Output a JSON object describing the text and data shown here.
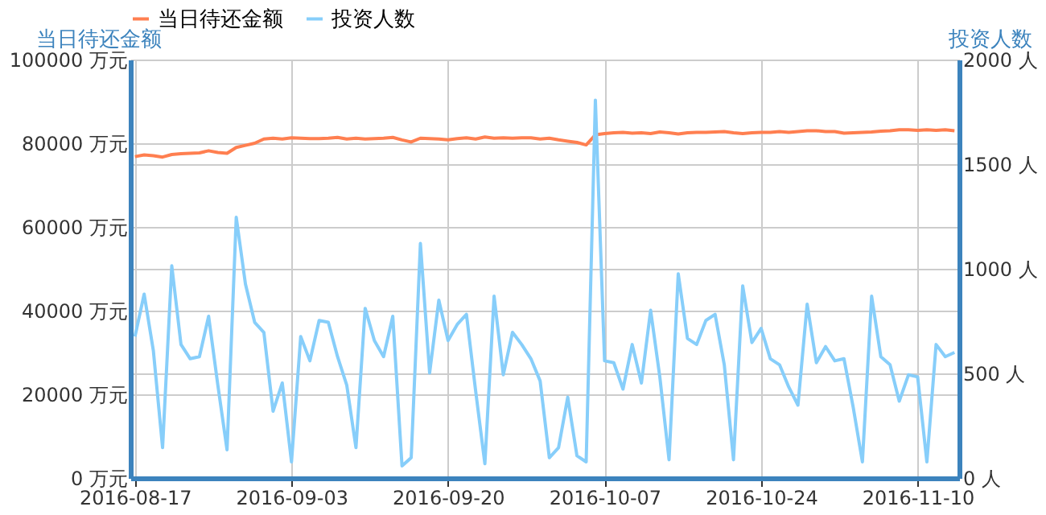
{
  "chart_data": {
    "type": "line",
    "x": [
      "2016-08-17",
      "2016-08-18",
      "2016-08-19",
      "2016-08-20",
      "2016-08-21",
      "2016-08-22",
      "2016-08-23",
      "2016-08-24",
      "2016-08-25",
      "2016-08-26",
      "2016-08-27",
      "2016-08-28",
      "2016-08-29",
      "2016-08-30",
      "2016-08-31",
      "2016-09-01",
      "2016-09-02",
      "2016-09-03",
      "2016-09-04",
      "2016-09-05",
      "2016-09-06",
      "2016-09-07",
      "2016-09-08",
      "2016-09-09",
      "2016-09-10",
      "2016-09-11",
      "2016-09-12",
      "2016-09-13",
      "2016-09-14",
      "2016-09-15",
      "2016-09-16",
      "2016-09-17",
      "2016-09-18",
      "2016-09-19",
      "2016-09-20",
      "2016-09-21",
      "2016-09-22",
      "2016-09-23",
      "2016-09-24",
      "2016-09-25",
      "2016-09-26",
      "2016-09-27",
      "2016-09-28",
      "2016-09-29",
      "2016-09-30",
      "2016-10-01",
      "2016-10-02",
      "2016-10-03",
      "2016-10-04",
      "2016-10-05",
      "2016-10-06",
      "2016-10-07",
      "2016-10-08",
      "2016-10-09",
      "2016-10-10",
      "2016-10-11",
      "2016-10-12",
      "2016-10-13",
      "2016-10-14",
      "2016-10-15",
      "2016-10-16",
      "2016-10-17",
      "2016-10-18",
      "2016-10-19",
      "2016-10-20",
      "2016-10-21",
      "2016-10-22",
      "2016-10-23",
      "2016-10-24",
      "2016-10-25",
      "2016-10-26",
      "2016-10-27",
      "2016-10-28",
      "2016-10-29",
      "2016-10-30",
      "2016-10-31",
      "2016-11-01",
      "2016-11-02",
      "2016-11-03",
      "2016-11-04",
      "2016-11-05",
      "2016-11-06",
      "2016-11-07",
      "2016-11-08",
      "2016-11-09",
      "2016-11-10",
      "2016-11-11",
      "2016-11-12",
      "2016-11-13",
      "2016-11-14"
    ],
    "series": [
      {
        "name": "当日待还金额",
        "color": "#ff7f50",
        "values": [
          76800,
          77200,
          77000,
          76700,
          77300,
          77500,
          77600,
          77700,
          78200,
          77800,
          77600,
          79000,
          79500,
          80000,
          81000,
          81200,
          81000,
          81300,
          81200,
          81100,
          81100,
          81200,
          81400,
          81000,
          81200,
          81000,
          81100,
          81200,
          81400,
          80800,
          80300,
          81200,
          81100,
          81000,
          80800,
          81100,
          81300,
          81000,
          81500,
          81200,
          81300,
          81200,
          81300,
          81300,
          81000,
          81200,
          80800,
          80500,
          80200,
          79600,
          82000,
          82300,
          82500,
          82600,
          82400,
          82500,
          82300,
          82700,
          82500,
          82200,
          82500,
          82600,
          82600,
          82700,
          82800,
          82500,
          82300,
          82500,
          82600,
          82600,
          82800,
          82600,
          82800,
          83000,
          83000,
          82800,
          82800,
          82400,
          82500,
          82600,
          82700,
          82900,
          83000,
          83200,
          83200,
          83100,
          83200,
          83100,
          83200,
          83000
        ]
      },
      {
        "name": "投资人数",
        "color": "#87cefa",
        "axis": "y2",
        "values": [
          676,
          879,
          608,
          145,
          1014,
          638,
          570,
          580,
          773,
          444,
          135,
          1246,
          927,
          744,
          696,
          319,
          454,
          77,
          676,
          560,
          753,
          744,
          580,
          444,
          145,
          811,
          657,
          580,
          773,
          58,
          97,
          1121,
          502,
          850,
          657,
          734,
          782,
          415,
          68,
          869,
          493,
          696,
          638,
          570,
          464,
          97,
          145,
          386,
          106,
          77,
          1806,
          560,
          551,
          425,
          638,
          454,
          802,
          483,
          87,
          976,
          667,
          638,
          753,
          782,
          541,
          87,
          918,
          647,
          715,
          570,
          541,
          435,
          348,
          831,
          551,
          628,
          560,
          570,
          338,
          77,
          869,
          580,
          541,
          367,
          493,
          483,
          77,
          638,
          580,
          600
        ]
      }
    ],
    "ylabel": "当日待还金额",
    "y2label": "投资人数",
    "xlim": [
      "2016-08-16T12:00",
      "2016-11-14T12:00"
    ],
    "xticks": [
      "2016-08-17",
      "2016-09-03",
      "2016-09-20",
      "2016-10-07",
      "2016-10-24",
      "2016-11-10"
    ],
    "ylim": [
      0,
      100000
    ],
    "yticks": [
      {
        "value": 0,
        "label": "0 万元"
      },
      {
        "value": 20000,
        "label": "20000 万元"
      },
      {
        "value": 40000,
        "label": "40000 万元"
      },
      {
        "value": 60000,
        "label": "60000 万元"
      },
      {
        "value": 80000,
        "label": "80000 万元"
      },
      {
        "value": 100000,
        "label": "100000 万元"
      }
    ],
    "y2lim": [
      0,
      2000
    ],
    "y2ticks": [
      {
        "value": 0,
        "label": "0 人"
      },
      {
        "value": 500,
        "label": "500 人"
      },
      {
        "value": 1000,
        "label": "1000 人"
      },
      {
        "value": 1500,
        "label": "1500 人"
      },
      {
        "value": 2000,
        "label": "2000 人"
      }
    ],
    "grid": true,
    "legend": "top",
    "marker": "none",
    "line_style": "solid"
  }
}
